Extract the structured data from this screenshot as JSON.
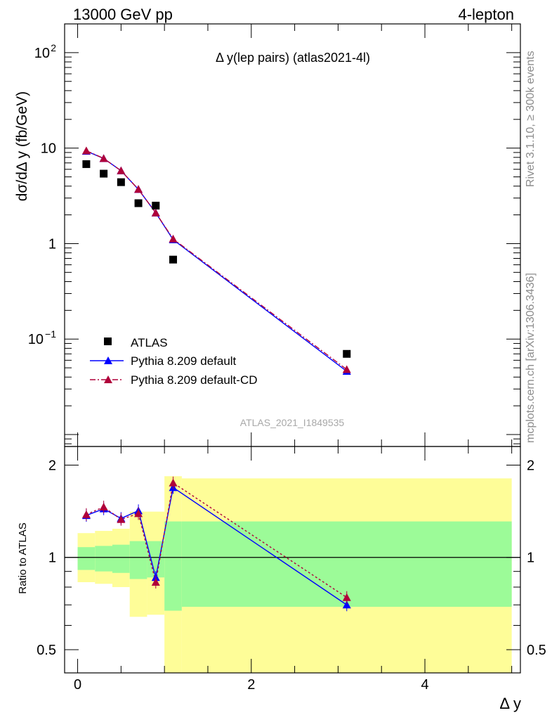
{
  "header": {
    "left": "13000 GeV pp",
    "right": "4-lepton"
  },
  "side_labels": {
    "rivet": "Rivet 3.1.10, ≥ 300k events",
    "mcplots": "mcplots.cern.ch [arXiv:1306.3436]"
  },
  "chart_data": [
    {
      "type": "scatter",
      "title": "Δ y(lep pairs) (atlas2021-4l)",
      "watermark": "ATLAS_2021_I1849535",
      "xlabel": "Δ y",
      "ylabel": "dσ/dΔ y (fb/GeV)",
      "yscale": "log",
      "xlim": [
        -0.15,
        5.1
      ],
      "ylim": [
        0.0075,
        200
      ],
      "yticks": [
        {
          "value": 100,
          "label": "10",
          "sup": "2"
        },
        {
          "value": 10,
          "label": "10",
          "sup": ""
        },
        {
          "value": 1,
          "label": "1",
          "sup": ""
        },
        {
          "value": 0.1,
          "label": "10",
          "sup": "−1"
        }
      ],
      "legend_position": "bottom-left",
      "series": [
        {
          "name": "ATLAS",
          "color": "#000000",
          "marker": "square",
          "x": [
            0.1,
            0.3,
            0.5,
            0.7,
            0.9,
            1.1,
            3.1
          ],
          "y": [
            6.8,
            5.4,
            4.4,
            2.65,
            2.5,
            0.68,
            0.07
          ]
        },
        {
          "name": "Pythia 8.209 default",
          "color": "#0000ff",
          "marker": "triangle",
          "line": "solid",
          "x": [
            0.1,
            0.3,
            0.5,
            0.7,
            0.9,
            1.1,
            3.1
          ],
          "y": [
            9.3,
            7.8,
            5.8,
            3.7,
            2.1,
            1.1,
            0.046
          ]
        },
        {
          "name": "Pythia 8.209 default-CD",
          "color": "#b0003a",
          "marker": "triangle",
          "line": "dashdot",
          "x": [
            0.1,
            0.3,
            0.5,
            0.7,
            0.9,
            1.1,
            3.1
          ],
          "y": [
            9.4,
            7.8,
            5.8,
            3.7,
            2.1,
            1.12,
            0.048
          ]
        }
      ]
    },
    {
      "type": "scatter",
      "xlabel": "Δ y",
      "ylabel": "Ratio to ATLAS",
      "yscale": "log",
      "xlim": [
        -0.15,
        5.1
      ],
      "ylim": [
        0.42,
        2.3
      ],
      "xticks": [
        0,
        2,
        4
      ],
      "yticks": [
        0.5,
        1,
        2
      ],
      "reference_line": 1,
      "bins": {
        "edges": [
          0,
          0.2,
          0.4,
          0.6,
          0.8,
          1.0,
          1.2,
          5.0
        ],
        "inner_band": [
          [
            0.91,
            1.08
          ],
          [
            0.9,
            1.09
          ],
          [
            0.89,
            1.1
          ],
          [
            0.85,
            1.13
          ],
          [
            0.86,
            1.13
          ],
          [
            0.67,
            1.31
          ],
          [
            0.69,
            1.31
          ]
        ],
        "outer_band": [
          [
            0.83,
            1.2
          ],
          [
            0.82,
            1.22
          ],
          [
            0.8,
            1.24
          ],
          [
            0.64,
            1.41
          ],
          [
            0.65,
            1.41
          ],
          [
            0.39,
            1.84
          ],
          [
            0.39,
            1.81
          ]
        ],
        "inner_color": "#9cfb98",
        "outer_color": "#fefd98"
      },
      "series": [
        {
          "name": "Pythia 8.209 default",
          "color": "#0000ff",
          "x": [
            0.1,
            0.3,
            0.5,
            0.7,
            0.9,
            1.1,
            3.1
          ],
          "y": [
            1.37,
            1.44,
            1.34,
            1.42,
            0.86,
            1.69,
            0.7
          ]
        },
        {
          "name": "Pythia 8.209 default-CD",
          "color": "#b0003a",
          "x": [
            0.1,
            0.3,
            0.5,
            0.7,
            0.9,
            1.1,
            3.1
          ],
          "y": [
            1.38,
            1.46,
            1.33,
            1.39,
            0.83,
            1.75,
            0.74
          ]
        }
      ]
    }
  ]
}
